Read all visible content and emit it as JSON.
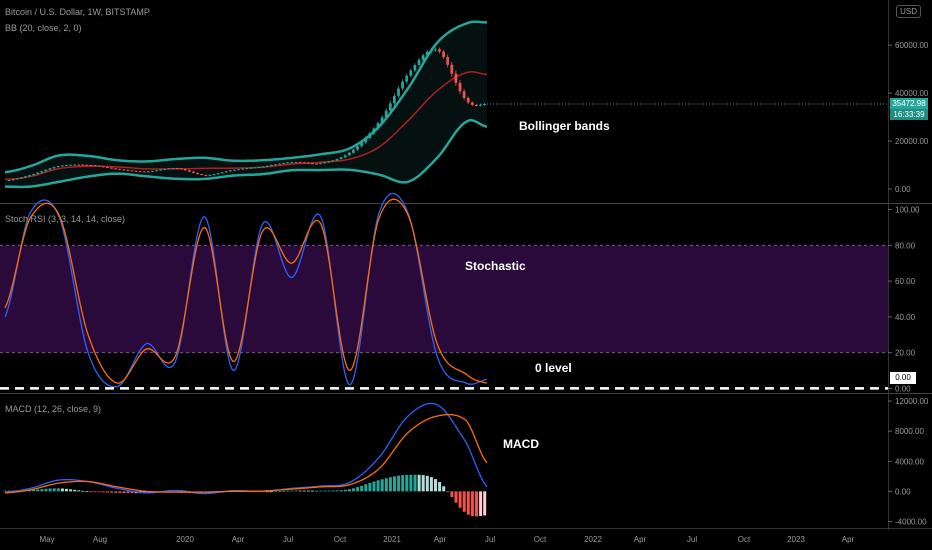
{
  "header": {
    "title": "Bitcoin / U.S. Dollar, 1W, BITSTAMP",
    "bb_label": "BB (20, close, 2, 0)",
    "stoch_label": "Stoch RSI (3, 3, 14, 14, close)",
    "macd_label": "MACD (12, 26, close, 9)",
    "currency": "USD"
  },
  "annotations": {
    "bollinger": "Bollinger bands",
    "stochastic": "Stochastic",
    "zero_level": "0 level",
    "macd": "MACD"
  },
  "price_tag": {
    "price": "35472.98",
    "countdown": "16:33:39"
  },
  "zero_tag": "0.00",
  "colors": {
    "background": "#000000",
    "up": "#26a69a",
    "down": "#ef5350",
    "bb_band": "#26a69a",
    "bb_basis": "#b71c1c",
    "k_line": "#2962ff",
    "d_line": "#ff6d00",
    "rsi_band": "#2a0a3a"
  },
  "chart_data": [
    {
      "type": "line",
      "title": "BB (20, close, 2, 0)",
      "x": [
        "2019-04-08",
        "2019-05-20",
        "2019-07-08",
        "2019-08-26",
        "2019-10-14",
        "2019-12-02",
        "2020-01-20",
        "2020-03-09",
        "2020-04-27",
        "2020-06-15",
        "2020-08-03",
        "2020-09-21",
        "2020-11-09",
        "2020-12-28",
        "2021-02-15",
        "2021-04-05",
        "2021-05-24",
        "2021-06-28"
      ],
      "series": [
        {
          "values": [
            3500,
            5800,
            9600,
            10000,
            8300,
            7300,
            8700,
            5800,
            8000,
            9400,
            11200,
            10800,
            15300,
            28000,
            48000,
            58000,
            37000,
            35473
          ]
        },
        {
          "values": [
            7000,
            9500,
            14000,
            13800,
            12000,
            11500,
            12500,
            13000,
            11800,
            12000,
            13000,
            14500,
            17000,
            26000,
            42000,
            61000,
            69000,
            69500
          ]
        },
        {
          "values": [
            4000,
            5200,
            8500,
            9500,
            9200,
            8400,
            8400,
            8600,
            8700,
            9100,
            10400,
            11200,
            12500,
            17500,
            28500,
            41000,
            48500,
            47800
          ]
        },
        {
          "values": [
            1000,
            1000,
            3000,
            5200,
            6400,
            5300,
            4300,
            4200,
            5600,
            6200,
            7800,
            7900,
            8000,
            6000,
            3000,
            13000,
            28000,
            26000
          ]
        }
      ],
      "ylim": [
        -5000,
        78000
      ],
      "yticks": [
        "0.00",
        "20000.00",
        "40000.00",
        "60000.00"
      ]
    },
    {
      "type": "line",
      "title": "Stoch RSI (3, 3, 14, 14, close)",
      "x": [
        "2019-04-08",
        "2019-05-20",
        "2019-07-08",
        "2019-08-26",
        "2019-10-14",
        "2019-12-02",
        "2020-01-20",
        "2020-03-09",
        "2020-04-27",
        "2020-06-15",
        "2020-08-03",
        "2020-09-21",
        "2020-11-09",
        "2020-12-28",
        "2021-02-15",
        "2021-04-05",
        "2021-05-24",
        "2021-06-28"
      ],
      "series": [
        {
          "values": [
            40,
            98,
            96,
            20,
            1,
            25,
            15,
            96,
            10,
            92,
            62,
            96,
            2,
            98,
            98,
            18,
            3,
            5
          ]
        },
        {
          "values": [
            45,
            95,
            97,
            30,
            3,
            22,
            18,
            90,
            15,
            88,
            70,
            92,
            10,
            95,
            97,
            25,
            8,
            3
          ]
        }
      ],
      "ylim": [
        -2,
        102
      ],
      "yticks": [
        "0.00",
        "20.00",
        "40.00",
        "60.00",
        "80.00",
        "100.00"
      ],
      "bands": [
        20,
        80
      ]
    },
    {
      "type": "line",
      "title": "MACD (12, 26, close, 9)",
      "x": [
        "2019-04-08",
        "2019-05-20",
        "2019-07-08",
        "2019-08-26",
        "2019-10-14",
        "2019-12-02",
        "2020-01-20",
        "2020-03-09",
        "2020-04-27",
        "2020-06-15",
        "2020-08-03",
        "2020-09-21",
        "2020-11-09",
        "2020-12-28",
        "2021-02-15",
        "2021-04-05",
        "2021-05-24",
        "2021-06-28"
      ],
      "series": [
        {
          "values": [
            -100,
            400,
            1500,
            1300,
            400,
            -200,
            100,
            -300,
            100,
            0,
            400,
            700,
            1200,
            4500,
            10000,
            11500,
            6500,
            600
          ]
        },
        {
          "values": [
            -200,
            200,
            1100,
            1300,
            600,
            0,
            -100,
            -100,
            0,
            50,
            300,
            600,
            900,
            3000,
            7800,
            10000,
            9400,
            3800
          ]
        }
      ],
      "ylim": [
        -4600,
        12800
      ],
      "yticks": [
        "-4000.00",
        "0.00",
        "4000.00",
        "8000.00",
        "12000.00"
      ]
    }
  ],
  "time_axis": [
    "May",
    "Aug",
    "2020",
    "Apr",
    "Jul",
    "Oct",
    "2021",
    "Apr",
    "Jul",
    "Oct",
    "2022",
    "Apr",
    "Jul",
    "Oct",
    "2023",
    "Apr"
  ]
}
